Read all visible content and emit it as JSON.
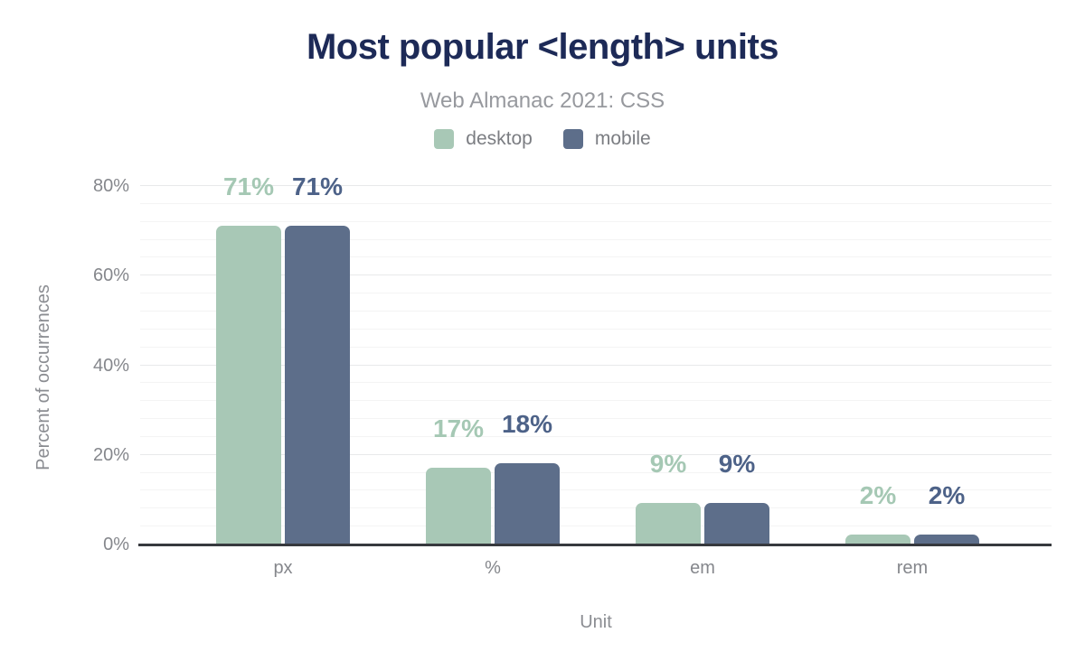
{
  "header": {
    "title": "Most popular <length> units",
    "subtitle": "Web Almanac 2021: CSS"
  },
  "legend": {
    "items": [
      {
        "label": "desktop",
        "color": "#a8c8b6"
      },
      {
        "label": "mobile",
        "color": "#5d6e8a"
      }
    ]
  },
  "chart_data": {
    "type": "bar",
    "title": "Most popular <length> units",
    "subtitle": "Web Almanac 2021: CSS",
    "categories": [
      "px",
      "%",
      "em",
      "rem"
    ],
    "series": [
      {
        "name": "desktop",
        "color": "#a8c8b6",
        "label_color": "#a5c8b4",
        "values": [
          71,
          17,
          9,
          2
        ],
        "value_labels": [
          "71%",
          "17%",
          "9%",
          "2%"
        ]
      },
      {
        "name": "mobile",
        "color": "#5d6e8a",
        "label_color": "#4d6288",
        "values": [
          71,
          18,
          9,
          2
        ],
        "value_labels": [
          "71%",
          "18%",
          "9%",
          "2%"
        ]
      }
    ],
    "xlabel": "Unit",
    "ylabel": "Percent of occurrences",
    "ylim": [
      0,
      80
    ],
    "yticks": [
      0,
      20,
      40,
      60,
      80
    ],
    "ytick_labels": [
      "0%",
      "20%",
      "40%",
      "60%",
      "80%"
    ],
    "minor_grid_step": 4,
    "major_grid_step": 20,
    "grid": "horizontal",
    "legend_position": "top"
  },
  "colors": {
    "title": "#1d2a57",
    "subtitle": "#97999e",
    "axis_text": "#85878c",
    "axis_line": "#37393e",
    "desktop": "#a8c8b6",
    "mobile": "#5d6e8a",
    "background": "#ffffff"
  }
}
